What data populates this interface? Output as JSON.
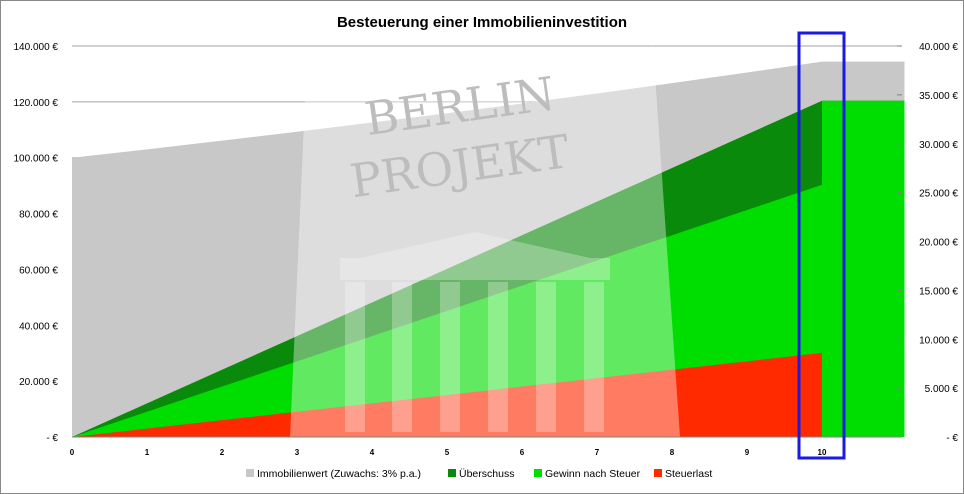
{
  "chart_data": {
    "type": "area",
    "title": "Besteuerung einer Immobilieninvestition",
    "xlabel": "",
    "ylabel": "",
    "x": [
      0,
      1,
      2,
      3,
      4,
      5,
      6,
      7,
      8,
      9,
      10
    ],
    "xlim": [
      0,
      11.1
    ],
    "y_left": {
      "lim": [
        0,
        140000
      ],
      "ticks": [
        0,
        20000,
        40000,
        60000,
        80000,
        100000,
        120000,
        140000
      ],
      "tick_labels": [
        "-  €",
        "20.000 €",
        "40.000 €",
        "60.000 €",
        "80.000 €",
        "100.000 €",
        "120.000 €",
        "140.000 €"
      ]
    },
    "y_right": {
      "lim": [
        0,
        40000
      ],
      "ticks": [
        0,
        5000,
        10000,
        15000,
        20000,
        25000,
        30000,
        35000,
        40000
      ],
      "tick_labels": [
        "-  €",
        "5.000 €",
        "10.000 €",
        "15.000 €",
        "20.000 €",
        "25.000 €",
        "30.000 €",
        "35.000 €",
        "40.000 €"
      ]
    },
    "series": [
      {
        "name": "Immobilienwert (Zuwachs: 3% p.a.)",
        "axis": "left",
        "color": "#c8c8c8",
        "values": [
          100000,
          103000,
          106100,
          109300,
          112600,
          115900,
          119400,
          123000,
          126700,
          130500,
          134400
        ]
      },
      {
        "name": "Überschuss",
        "axis": "right",
        "color": "#0a8a0a",
        "values": [
          0,
          3440,
          6880,
          10320,
          13760,
          17200,
          20640,
          24080,
          27520,
          30960,
          34400
        ]
      },
      {
        "name": "Gewinn nach Steuer",
        "axis": "right",
        "color": "#00dd00",
        "values": [
          0,
          2580,
          5160,
          7740,
          10320,
          12900,
          15480,
          18060,
          20640,
          23220,
          25800
        ]
      },
      {
        "name": "Steuerlast",
        "axis": "right",
        "color": "#ff2a00",
        "values": [
          0,
          860,
          1720,
          2580,
          3440,
          4300,
          5160,
          6020,
          6880,
          7740,
          8600
        ]
      }
    ],
    "x_tick_labels": [
      "0",
      "1",
      "2",
      "3",
      "4",
      "5",
      "6",
      "7",
      "8",
      "9",
      "10"
    ],
    "grid": {
      "horizontal": true,
      "vertical": false
    },
    "legend_position": "bottom",
    "highlight": {
      "x": 10,
      "color": "#1a1ae0"
    },
    "watermark": [
      "BERLIN",
      "PROJEKT"
    ]
  }
}
